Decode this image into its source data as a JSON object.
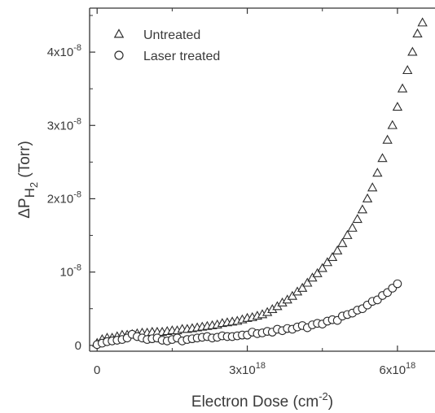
{
  "chart_data": {
    "type": "scatter",
    "xlabel": "Electron Dose (cm",
    "xlabel_sup": "-2",
    "xlabel_end": ")",
    "ylabel_prefix": "ΔP",
    "ylabel_sub": "H",
    "ylabel_subsub": "2",
    "ylabel_suffix": " (Torr)",
    "xlim": [
      -0.15,
      6.75
    ],
    "ylim": [
      -0.08,
      4.6
    ],
    "x_unit_note": "x in 10^18 cm^-2, y in 10^-8 Torr",
    "x_ticks": [
      {
        "value": 0,
        "label": "0",
        "sup": ""
      },
      {
        "value": 3,
        "label": "3x10",
        "sup": "18"
      },
      {
        "value": 6,
        "label": "6x10",
        "sup": "18"
      }
    ],
    "y_ticks": [
      {
        "value": 0,
        "label": "0",
        "sup": ""
      },
      {
        "value": 1,
        "label": "10",
        "sup": "-8"
      },
      {
        "value": 2,
        "label": "2x10",
        "sup": "-8"
      },
      {
        "value": 3,
        "label": "3x10",
        "sup": "-8"
      },
      {
        "value": 4,
        "label": "4x10",
        "sup": "-8"
      }
    ],
    "legend_position": "top-left",
    "grid": false,
    "series": [
      {
        "name": "Untreated",
        "marker": "triangle",
        "color": "#2b2b2b",
        "x": [
          0.0,
          0.1,
          0.2,
          0.3,
          0.4,
          0.5,
          0.6,
          0.7,
          0.8,
          0.9,
          1.0,
          1.1,
          1.2,
          1.3,
          1.4,
          1.5,
          1.6,
          1.7,
          1.8,
          1.9,
          2.0,
          2.1,
          2.2,
          2.3,
          2.4,
          2.5,
          2.6,
          2.7,
          2.8,
          2.9,
          3.0,
          3.1,
          3.2,
          3.3,
          3.4,
          3.5,
          3.6,
          3.7,
          3.8,
          3.9,
          4.0,
          4.1,
          4.2,
          4.3,
          4.4,
          4.5,
          4.6,
          4.7,
          4.8,
          4.9,
          5.0,
          5.1,
          5.2,
          5.3,
          5.4,
          5.5,
          5.6,
          5.7,
          5.8,
          5.9,
          6.0,
          6.1,
          6.2,
          6.3,
          6.4,
          6.5
        ],
        "y": [
          0.03,
          0.08,
          0.1,
          0.1,
          0.12,
          0.14,
          0.14,
          0.15,
          0.16,
          0.17,
          0.17,
          0.18,
          0.18,
          0.18,
          0.19,
          0.2,
          0.2,
          0.22,
          0.22,
          0.23,
          0.24,
          0.25,
          0.26,
          0.27,
          0.28,
          0.3,
          0.31,
          0.32,
          0.33,
          0.35,
          0.37,
          0.38,
          0.4,
          0.42,
          0.45,
          0.49,
          0.53,
          0.58,
          0.62,
          0.67,
          0.73,
          0.78,
          0.85,
          0.92,
          0.98,
          1.05,
          1.13,
          1.2,
          1.29,
          1.39,
          1.5,
          1.6,
          1.72,
          1.85,
          2.0,
          2.15,
          2.35,
          2.55,
          2.8,
          3.0,
          3.25,
          3.5,
          3.75,
          4.0,
          4.25,
          4.4
        ]
      },
      {
        "name": "Laser treated",
        "marker": "circle",
        "color": "#2b2b2b",
        "x": [
          0.0,
          0.1,
          0.2,
          0.3,
          0.4,
          0.5,
          0.6,
          0.7,
          0.8,
          0.9,
          1.0,
          1.1,
          1.2,
          1.3,
          1.4,
          1.5,
          1.6,
          1.7,
          1.8,
          1.9,
          2.0,
          2.1,
          2.2,
          2.3,
          2.4,
          2.5,
          2.6,
          2.7,
          2.8,
          2.9,
          3.0,
          3.1,
          3.2,
          3.3,
          3.4,
          3.5,
          3.6,
          3.7,
          3.8,
          3.9,
          4.0,
          4.1,
          4.2,
          4.3,
          4.4,
          4.5,
          4.6,
          4.7,
          4.8,
          4.9,
          5.0,
          5.1,
          5.2,
          5.3,
          5.4,
          5.5,
          5.6,
          5.7,
          5.8,
          5.9,
          6.0
        ],
        "y": [
          0.01,
          0.03,
          0.05,
          0.06,
          0.07,
          0.08,
          0.1,
          0.15,
          0.12,
          0.1,
          0.08,
          0.09,
          0.1,
          0.07,
          0.06,
          0.08,
          0.1,
          0.06,
          0.08,
          0.09,
          0.1,
          0.11,
          0.12,
          0.1,
          0.11,
          0.13,
          0.12,
          0.12,
          0.13,
          0.14,
          0.14,
          0.18,
          0.16,
          0.17,
          0.19,
          0.18,
          0.22,
          0.2,
          0.23,
          0.22,
          0.25,
          0.27,
          0.24,
          0.28,
          0.3,
          0.29,
          0.33,
          0.35,
          0.34,
          0.4,
          0.42,
          0.44,
          0.48,
          0.5,
          0.55,
          0.6,
          0.62,
          0.68,
          0.72,
          0.78,
          0.84
        ]
      }
    ]
  }
}
